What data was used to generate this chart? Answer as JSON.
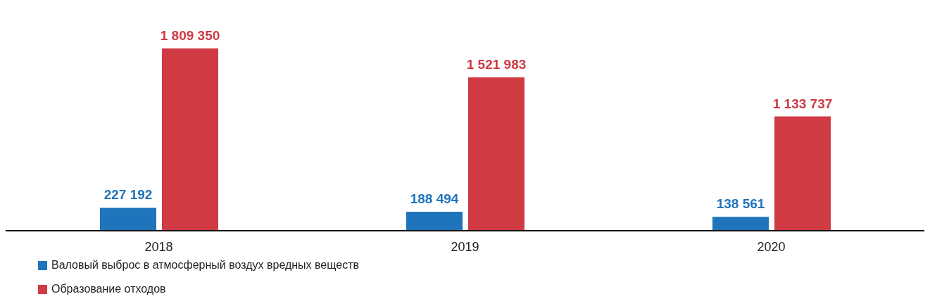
{
  "chart_data": {
    "type": "bar",
    "categories": [
      "2018",
      "2019",
      "2020"
    ],
    "series": [
      {
        "name": "Валовый выброс в атмосферный воздух вредных веществ",
        "color": "#1f74bb",
        "values": [
          227192,
          188494,
          138561
        ],
        "value_labels": [
          "227 192",
          "188 494",
          "138 561"
        ]
      },
      {
        "name": "Образование отходов",
        "color": "#cf3a43",
        "values": [
          1809350,
          1521983,
          1133737
        ],
        "value_labels": [
          "1 809 350",
          "1 521 983",
          "1 133 737"
        ]
      }
    ],
    "legend": "bottom left",
    "grid": false
  }
}
